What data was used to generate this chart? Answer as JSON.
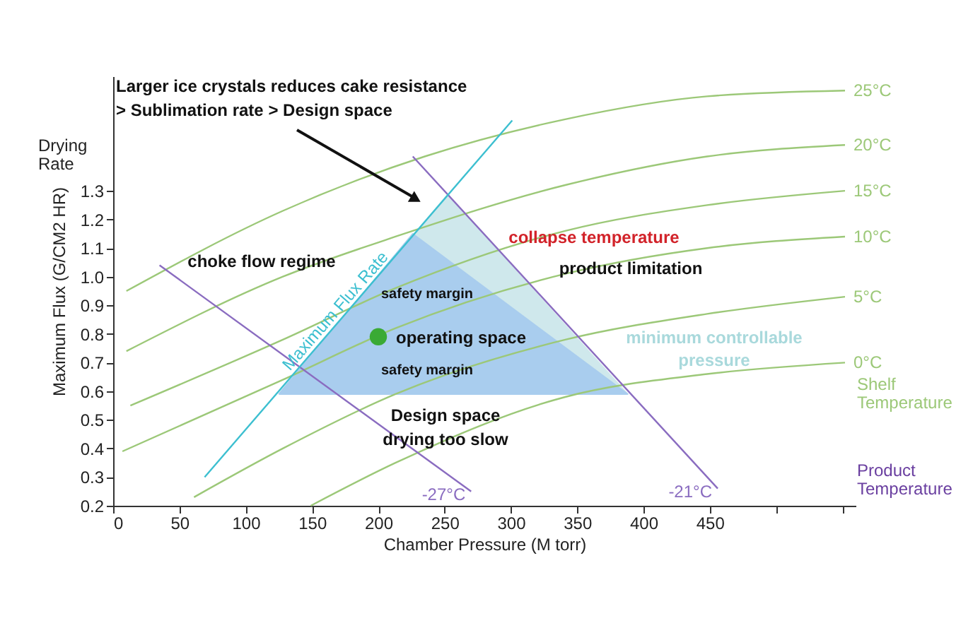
{
  "chart_data": {
    "type": "line",
    "xlabel": "Chamber Pressure (M torr)",
    "ylabel": "Maximum Flux (G/CM2 HR)",
    "xlim": [
      0,
      560
    ],
    "xticks": [
      0,
      50,
      100,
      150,
      200,
      250,
      300,
      350,
      400,
      450,
      {
        "value": 500,
        "label": null
      },
      {
        "value": 550,
        "label": null
      }
    ],
    "ylim": [
      0.2,
      1.7
    ],
    "yticks": [
      0.2,
      0.3,
      0.4,
      0.5,
      0.6,
      0.7,
      0.8,
      0.9,
      {
        "value": 1.0,
        "label": "1.0"
      },
      1.1,
      1.2,
      1.3
    ],
    "grid": false,
    "series": [
      {
        "type": "area",
        "color": "#cfe8ec",
        "x": [
          125,
          252,
          388,
          125
        ],
        "values": [
          0.59,
          1.285,
          0.59,
          0.59
        ]
      },
      {
        "type": "area",
        "color": "#a9cdee",
        "x": [
          125,
          226,
          388,
          125
        ],
        "values": [
          0.59,
          1.15,
          0.59,
          0.59
        ]
      },
      {
        "name": "25°C",
        "color": "#9cc878",
        "x": [
          10,
          128,
          235,
          341,
          448,
          552
        ],
        "values": [
          0.95,
          1.23,
          1.42,
          1.55,
          1.63,
          1.65
        ]
      },
      {
        "name": "20°C",
        "color": "#9cc878",
        "x": [
          10,
          128,
          213,
          341,
          448,
          552
        ],
        "values": [
          0.74,
          1.0,
          1.14,
          1.32,
          1.42,
          1.46
        ]
      },
      {
        "name": "15°C",
        "color": "#9cc878",
        "x": [
          13,
          128,
          213,
          341,
          448,
          552
        ],
        "values": [
          0.55,
          0.78,
          0.96,
          1.16,
          1.25,
          1.3
        ]
      },
      {
        "name": "10°C",
        "color": "#9cc878",
        "x": [
          7,
          128,
          213,
          341,
          448,
          552
        ],
        "values": [
          0.39,
          0.64,
          0.82,
          1.01,
          1.1,
          1.14
        ]
      },
      {
        "name": "5°C",
        "color": "#9cc878",
        "x": [
          61,
          128,
          213,
          341,
          448,
          552
        ],
        "values": [
          0.23,
          0.4,
          0.59,
          0.78,
          0.87,
          0.93
        ]
      },
      {
        "name": "0°C",
        "color": "#9cc878",
        "x": [
          149,
          213,
          341,
          448,
          552
        ],
        "values": [
          0.2,
          0.35,
          0.58,
          0.66,
          0.7
        ]
      },
      {
        "name": "-27°C",
        "color": "#8a6cc0",
        "x": [
          35,
          270
        ],
        "values": [
          1.04,
          0.25
        ]
      },
      {
        "name": "-21°C",
        "color": "#8a6cc0",
        "x": [
          226,
          456
        ],
        "values": [
          1.42,
          0.26
        ]
      },
      {
        "color": "#3cbfd0",
        "x": [
          69,
          301
        ],
        "values": [
          0.3,
          1.546
        ]
      },
      {
        "type": "scatter",
        "color": "#3aaa35",
        "x": [
          200
        ],
        "values": [
          0.79
        ]
      }
    ],
    "annotations": [
      "Larger ice crystals reduces cake resistance\n> Sublimation rate > Design space",
      "choke flow regime",
      "Maximum Flux Rate",
      "safety margin",
      "operating space",
      "safety margin",
      "collapse temperature",
      "product limitation",
      "minimum controllable\npressure",
      "Design space",
      "drying too slow",
      "Drying\nRate",
      "Shelf\nTemperature",
      "Product\nTemperature"
    ]
  }
}
